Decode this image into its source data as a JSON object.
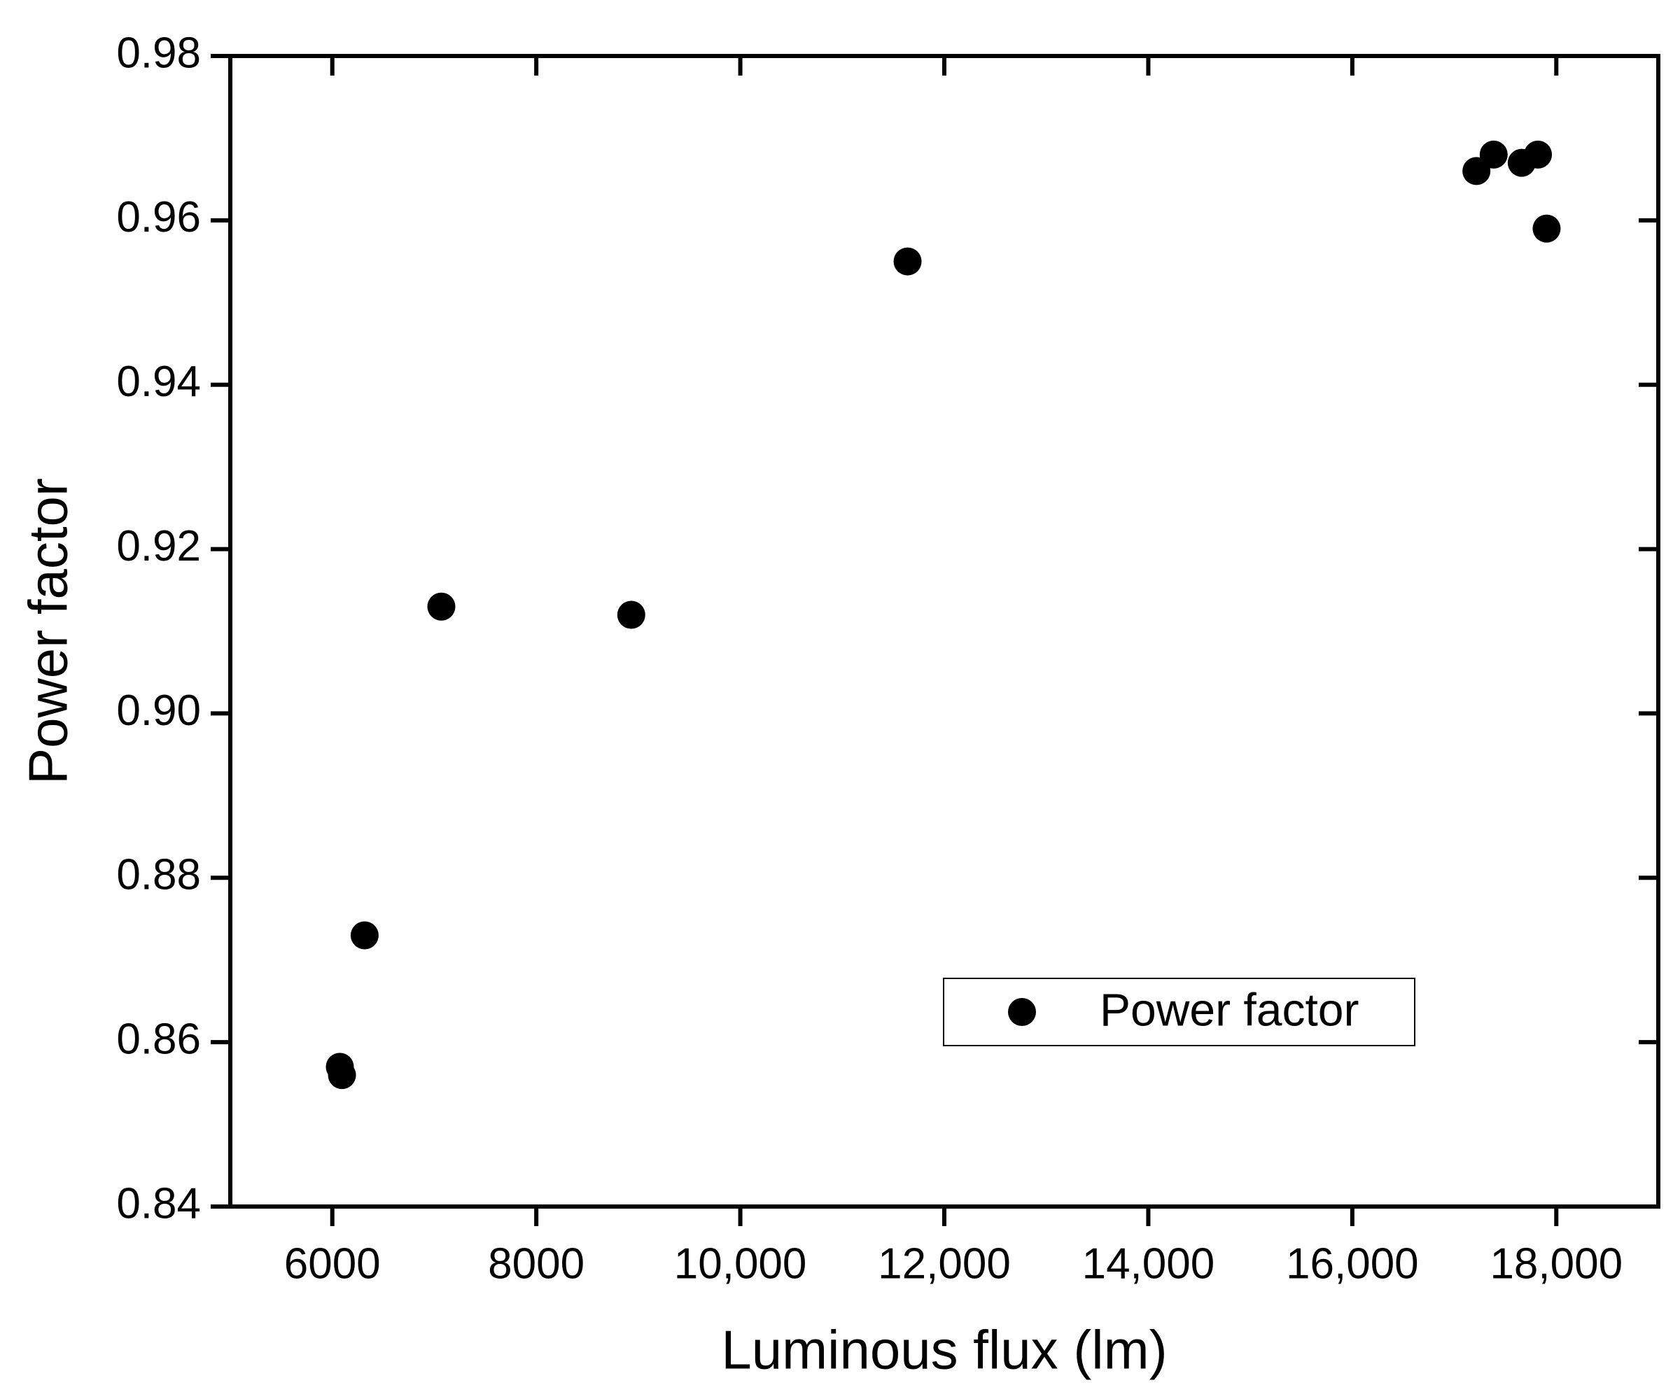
{
  "chart_data": {
    "type": "scatter",
    "xlabel": "Luminous flux (lm)",
    "ylabel": "Power factor",
    "xlim": [
      5000,
      19000
    ],
    "ylim": [
      0.84,
      0.98
    ],
    "xticks": [
      6000,
      8000,
      {
        "value": 10000,
        "label": "10,000"
      },
      {
        "value": 12000,
        "label": "12,000"
      },
      {
        "value": 14000,
        "label": "14,000"
      },
      {
        "value": 16000,
        "label": "16,000"
      },
      {
        "value": 18000,
        "label": "18,000"
      }
    ],
    "yticks": [
      0.84,
      0.86,
      0.88,
      {
        "value": 0.9,
        "label": "0.90"
      },
      0.92,
      0.94,
      0.96,
      0.98
    ],
    "grid": false,
    "legend_loc": "lower right",
    "series": [
      {
        "name": "Power factor",
        "color": "#000000",
        "x": [
          6074,
          6095,
          6317,
          7069,
          8931,
          11640,
          17217,
          17386,
          17661,
          17820,
          17905
        ],
        "values": [
          0.857,
          0.856,
          0.873,
          0.913,
          0.912,
          0.955,
          0.966,
          0.968,
          0.967,
          0.968,
          0.959
        ]
      }
    ]
  }
}
